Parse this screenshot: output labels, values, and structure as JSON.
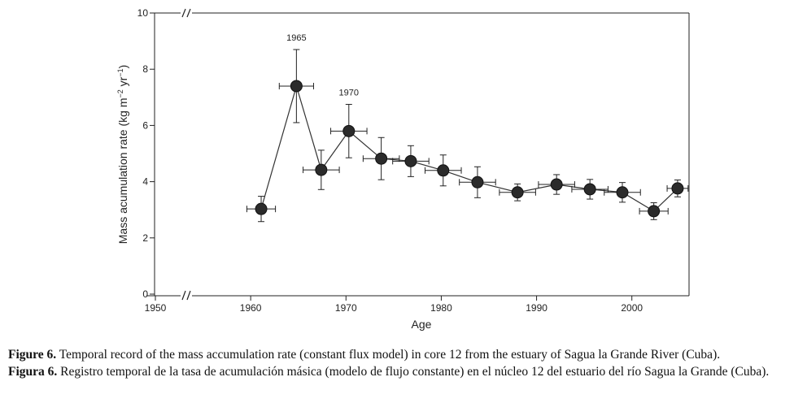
{
  "chart_data": {
    "type": "scatter",
    "ylabel_main": "Mass acumulation rate (kg m",
    "ylabel_sup1": "−2",
    "ylabel_mid": " yr",
    "ylabel_sup2": "−1",
    "ylabel_end": ")",
    "xlabel": "Age",
    "xlim": [
      1950,
      2006
    ],
    "ylim": [
      0,
      10
    ],
    "x_ticks": [
      "1950",
      "1960",
      "1970",
      "1980",
      "1990",
      "2000"
    ],
    "x_tick_values": [
      1950,
      1960,
      1970,
      1980,
      1990,
      2000
    ],
    "y_ticks": [
      "0",
      "2",
      "4",
      "6",
      "8",
      "10"
    ],
    "y_tick_values": [
      0,
      2,
      4,
      6,
      8,
      10
    ],
    "axis_break": true,
    "annotations": [
      {
        "text": "1965",
        "x": 1964.8,
        "y": 7.4
      },
      {
        "text": "1970",
        "x": 1970.3,
        "y": 5.8
      }
    ],
    "series": [
      {
        "name": "Mass accumulation rate",
        "points": [
          {
            "x": 1961.1,
            "y": 3.03,
            "xerr": 1.5,
            "yerr": 0.45
          },
          {
            "x": 1964.8,
            "y": 7.4,
            "xerr": 1.8,
            "yerr": 1.3
          },
          {
            "x": 1967.4,
            "y": 4.42,
            "xerr": 1.9,
            "yerr": 0.7
          },
          {
            "x": 1970.3,
            "y": 5.8,
            "xerr": 1.9,
            "yerr": 0.95
          },
          {
            "x": 1973.7,
            "y": 4.82,
            "xerr": 1.9,
            "yerr": 0.75
          },
          {
            "x": 1976.8,
            "y": 4.73,
            "xerr": 1.9,
            "yerr": 0.55
          },
          {
            "x": 1980.2,
            "y": 4.4,
            "xerr": 1.9,
            "yerr": 0.55
          },
          {
            "x": 1983.8,
            "y": 3.98,
            "xerr": 1.9,
            "yerr": 0.55
          },
          {
            "x": 1988.0,
            "y": 3.62,
            "xerr": 1.9,
            "yerr": 0.3
          },
          {
            "x": 1992.1,
            "y": 3.9,
            "xerr": 1.9,
            "yerr": 0.35
          },
          {
            "x": 1995.6,
            "y": 3.73,
            "xerr": 1.9,
            "yerr": 0.35
          },
          {
            "x": 1999.0,
            "y": 3.62,
            "xerr": 1.9,
            "yerr": 0.35
          },
          {
            "x": 2002.3,
            "y": 2.95,
            "xerr": 1.5,
            "yerr": 0.3
          },
          {
            "x": 2004.8,
            "y": 3.76,
            "xerr": 1.1,
            "yerr": 0.3
          }
        ]
      }
    ]
  },
  "caption": {
    "en_label": "Figure 6.",
    "en_text": " Temporal record of the mass accumulation rate (constant flux model) in core 12 from the estuary of Sagua la Grande River (Cuba).",
    "es_label": "Figura 6.",
    "es_text": " Registro temporal de la tasa de acumulación másica (modelo de flujo constante) en el núcleo 12 del estuario del río Sagua la Grande (Cuba)."
  }
}
